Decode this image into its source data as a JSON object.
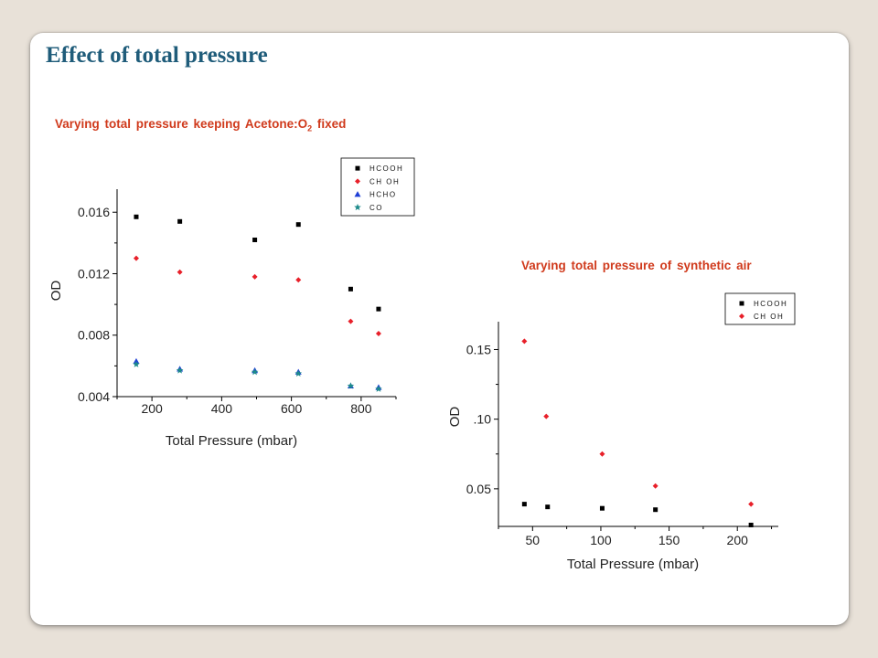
{
  "slide": {
    "title": "Effect of total pressure",
    "subtitle_left_main": "Varying total pressure keeping Acetone:O",
    "subtitle_left_sub": "2",
    "subtitle_left_end": " fixed",
    "subtitle_right": "Varying total pressure of synthetic air"
  },
  "colors": {
    "title": "#1f5c7a",
    "subtitle": "#d03a1c"
  },
  "chart_data": [
    {
      "type": "scatter",
      "title": "",
      "xlabel": "Total Pressure (mbar)",
      "ylabel": "OD",
      "xlim": [
        100,
        900
      ],
      "ylim": [
        0.004,
        0.0175
      ],
      "xticks": [
        200,
        400,
        600,
        800
      ],
      "xtick_labels": [
        "200",
        "400",
        "600",
        "800"
      ],
      "yticks": [
        0.004,
        0.008,
        0.012,
        0.016
      ],
      "ytick_labels": [
        "0.004",
        "0.008",
        "0.012",
        "0.016"
      ],
      "legend_position": "top-right",
      "series": [
        {
          "name": "HCOOH",
          "color": "#000000",
          "marker": "square",
          "x": [
            155,
            280,
            495,
            620,
            770,
            850
          ],
          "y": [
            0.0157,
            0.0154,
            0.0142,
            0.0152,
            0.011,
            0.0097
          ]
        },
        {
          "name": "CH3OH",
          "color": "#e8202a",
          "marker": "diamond",
          "x": [
            155,
            280,
            495,
            620,
            770,
            850
          ],
          "y": [
            0.013,
            0.0121,
            0.0118,
            0.0116,
            0.0089,
            0.0081
          ]
        },
        {
          "name": "HCHO",
          "color": "#1f3fd6",
          "marker": "triangle",
          "x": [
            155,
            280,
            495,
            620,
            770,
            850
          ],
          "y": [
            0.0063,
            0.0058,
            0.0057,
            0.0056,
            0.0047,
            0.0046
          ]
        },
        {
          "name": "CO",
          "color": "#1d8a8a",
          "marker": "star",
          "x": [
            155,
            280,
            495,
            620,
            770,
            850
          ],
          "y": [
            0.0061,
            0.0057,
            0.0056,
            0.0055,
            0.0047,
            0.0045
          ]
        }
      ],
      "legend_labels": [
        "HCOOH",
        "CH OH",
        "HCHO",
        "CO"
      ]
    },
    {
      "type": "scatter",
      "title": "",
      "xlabel": "Total Pressure (mbar)",
      "ylabel": "OD",
      "xlim": [
        25,
        230
      ],
      "ylim": [
        0.023,
        0.17
      ],
      "xticks": [
        50,
        100,
        150,
        200
      ],
      "xtick_labels": [
        "50",
        "100",
        "150",
        "200"
      ],
      "yticks": [
        0.05,
        0.1,
        0.15
      ],
      "ytick_labels": [
        "0.05",
        ".10",
        "0.15"
      ],
      "legend_position": "top-right",
      "series": [
        {
          "name": "HCOOH",
          "color": "#000000",
          "marker": "square",
          "x": [
            44,
            61,
            101,
            140,
            210
          ],
          "y": [
            0.039,
            0.037,
            0.036,
            0.035,
            0.024
          ]
        },
        {
          "name": "CH3OH",
          "color": "#e8202a",
          "marker": "diamond",
          "x": [
            44,
            60,
            101,
            140,
            210
          ],
          "y": [
            0.156,
            0.102,
            0.075,
            0.052,
            0.039
          ]
        }
      ],
      "legend_labels": [
        "HCOOH",
        "CH OH"
      ]
    }
  ]
}
